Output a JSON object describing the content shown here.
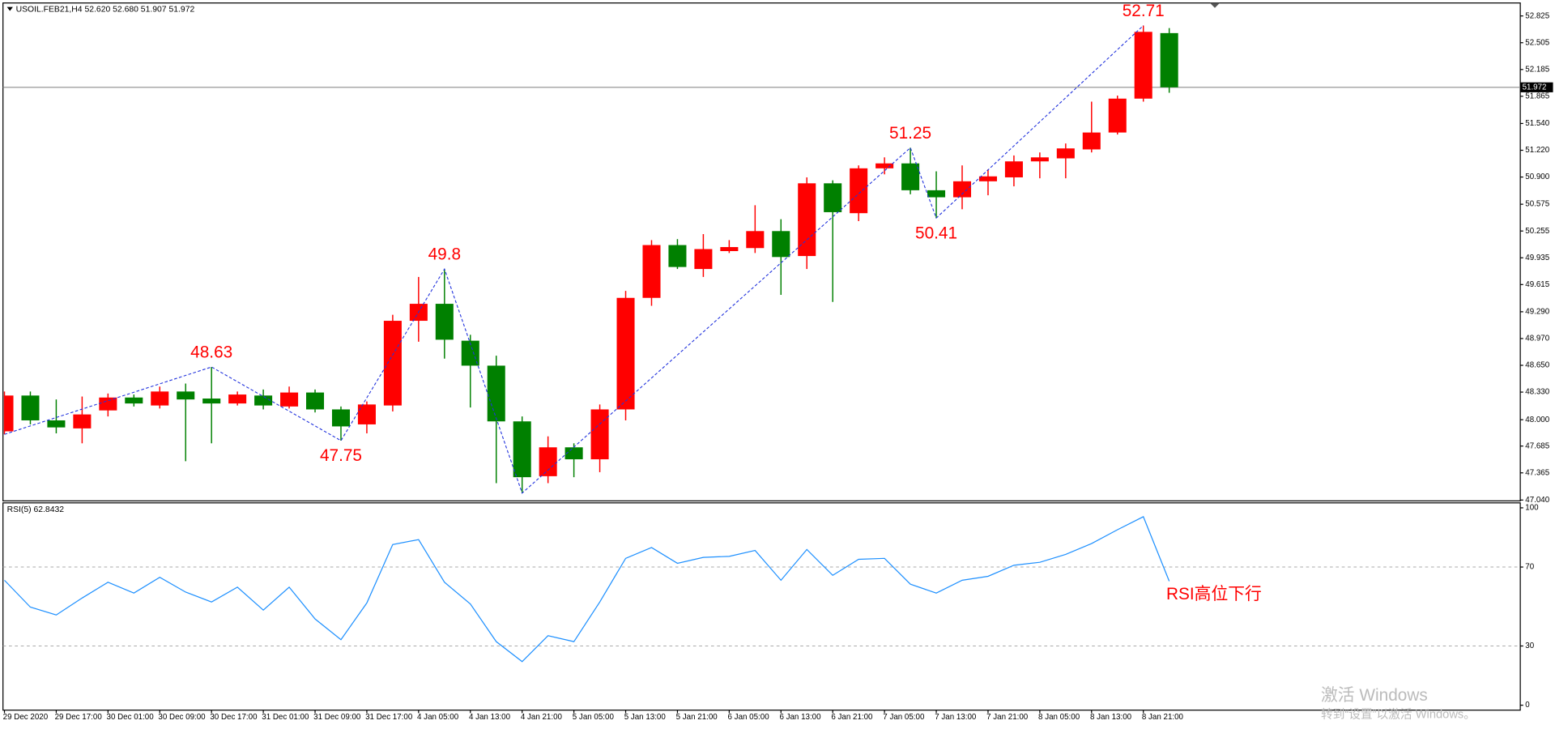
{
  "chart_data": [
    {
      "type": "candlestick",
      "title": "USOIL.FEB21,H4  52.620 52.680 51.907 51.972",
      "categories": [
        "29 Dec 2020",
        null,
        "29 Dec 17:00",
        null,
        "30 Dec 01:00",
        null,
        "30 Dec 09:00",
        null,
        "30 Dec 17:00",
        null,
        "31 Dec 01:00",
        null,
        "31 Dec 09:00",
        null,
        "31 Dec 17:00",
        null,
        "4 Jan 05:00",
        null,
        "4 Jan 13:00",
        null,
        "4 Jan 21:00",
        null,
        "5 Jan 05:00",
        null,
        "5 Jan 13:00",
        null,
        "5 Jan 21:00",
        null,
        "6 Jan 05:00",
        null,
        "6 Jan 13:00",
        null,
        "6 Jan 21:00",
        null,
        "7 Jan 05:00",
        null,
        "7 Jan 13:00",
        null,
        "7 Jan 21:00",
        null,
        "8 Jan 05:00",
        null,
        "8 Jan 13:00",
        null,
        "8 Jan 21:00",
        null
      ],
      "open": [
        47.861,
        48.289,
        47.992,
        47.896,
        48.111,
        48.265,
        48.17,
        48.337,
        48.253,
        48.194,
        48.289,
        48.158,
        48.325,
        48.123,
        47.944,
        48.17,
        49.182,
        49.385,
        48.944,
        48.646,
        47.98,
        47.325,
        47.67,
        47.527,
        48.123,
        49.456,
        50.087,
        49.801,
        50.015,
        50.051,
        50.254,
        49.956,
        50.825,
        50.468,
        51.004,
        51.063,
        50.742,
        50.658,
        50.849,
        50.896,
        51.087,
        51.123,
        51.23,
        51.432,
        51.837,
        52.62
      ],
      "high": [
        48.337,
        48.337,
        48.242,
        48.277,
        48.313,
        48.301,
        48.396,
        48.432,
        48.63,
        48.337,
        48.361,
        48.396,
        48.361,
        48.158,
        48.218,
        49.254,
        49.706,
        49.8,
        49.015,
        48.765,
        48.039,
        47.801,
        47.718,
        48.182,
        49.539,
        50.146,
        50.158,
        50.218,
        50.146,
        50.563,
        50.396,
        50.896,
        50.861,
        51.039,
        51.135,
        51.25,
        50.968,
        51.039,
        50.992,
        51.158,
        51.194,
        51.301,
        51.801,
        51.873,
        52.71,
        52.68
      ],
      "low": [
        47.825,
        47.944,
        47.837,
        47.718,
        48.039,
        48.158,
        48.134,
        47.504,
        47.718,
        48.17,
        48.123,
        48.134,
        48.087,
        47.75,
        47.837,
        48.099,
        48.932,
        48.73,
        48.146,
        47.242,
        47.123,
        47.242,
        47.313,
        47.373,
        47.992,
        49.361,
        49.801,
        49.706,
        49.992,
        49.992,
        49.492,
        49.801,
        49.408,
        50.373,
        50.932,
        50.694,
        50.41,
        50.515,
        50.682,
        50.789,
        50.885,
        50.885,
        51.194,
        51.408,
        51.801,
        51.907
      ],
      "close": [
        48.289,
        47.992,
        47.908,
        48.063,
        48.265,
        48.194,
        48.337,
        48.242,
        48.194,
        48.301,
        48.17,
        48.325,
        48.123,
        47.92,
        48.182,
        49.182,
        49.385,
        48.956,
        48.646,
        47.98,
        47.313,
        47.67,
        47.527,
        48.123,
        49.456,
        50.087,
        49.825,
        50.039,
        50.063,
        50.254,
        49.944,
        50.825,
        50.48,
        51.004,
        51.063,
        50.742,
        50.658,
        50.849,
        50.908,
        51.087,
        51.135,
        51.242,
        51.432,
        51.837,
        52.635,
        51.972
      ],
      "up_color": "#ff0000",
      "down_color": "#008000",
      "ylim": [
        47.03,
        52.98
      ],
      "yticks": [
        52.825,
        52.505,
        52.185,
        51.865,
        {
          "value": 51.54,
          "label": "51.540"
        },
        {
          "value": 51.22,
          "label": "51.220"
        },
        {
          "value": 50.9,
          "label": "50.900"
        },
        50.575,
        50.255,
        49.935,
        49.615,
        {
          "value": 49.29,
          "label": "49.290"
        },
        {
          "value": 48.97,
          "label": "48.970"
        },
        {
          "value": 48.65,
          "label": "48.650"
        },
        {
          "value": 48.33,
          "label": "48.330"
        },
        {
          "value": 48,
          "label": "48.000"
        },
        47.685,
        47.365,
        {
          "value": 47.04,
          "label": "47.040"
        }
      ],
      "current_price": 51.972,
      "zigzag": {
        "color": "#2233dd",
        "label_color": "#ff0000",
        "x": [
          0,
          8,
          13,
          17,
          20,
          35,
          36,
          44
        ],
        "values": [
          47.825,
          48.63,
          47.75,
          49.8,
          47.123,
          51.25,
          50.41,
          52.71
        ],
        "value_labels": [
          null,
          "48.63",
          "47.75",
          "49.8",
          null,
          "51.25",
          "50.41",
          "52.71"
        ]
      }
    },
    {
      "type": "line",
      "title": "RSI(5) 62.8432",
      "color": "#1e90ff",
      "values": [
        63.3,
        49.7,
        45.7,
        54.3,
        62.3,
        56.8,
        64.8,
        57.3,
        52.3,
        59.8,
        48.2,
        59.8,
        43.7,
        33.2,
        51.8,
        81.4,
        83.9,
        62.3,
        51.3,
        32.2,
        22.1,
        35.2,
        32.2,
        52.3,
        74.4,
        79.9,
        71.9,
        74.9,
        75.4,
        78.4,
        63.3,
        78.9,
        65.8,
        73.9,
        74.4,
        61.3,
        56.8,
        63.3,
        65.3,
        70.9,
        72.4,
        76.4,
        81.9,
        88.9,
        95.5,
        62.8432
      ],
      "ylim": [
        0,
        100
      ],
      "yticks": [
        0,
        30,
        70,
        100
      ],
      "annotation": "RSI高位下行",
      "annotation_color": "#ff0000"
    }
  ],
  "watermark": {
    "title": "激活 Windows",
    "subtitle": "转到“设置”以激活 Windows。"
  }
}
